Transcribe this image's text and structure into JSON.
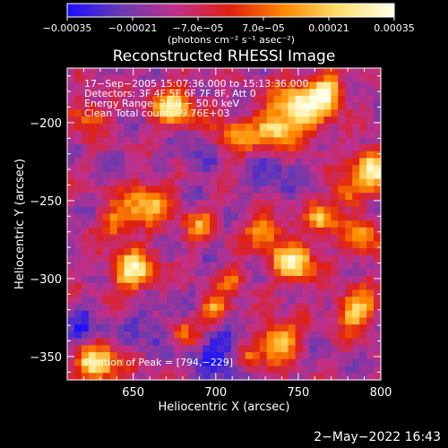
{
  "chart_data": {
    "type": "heatmap",
    "title": "Reconstructed RHESSI Image",
    "xlabel": "Heliocentric X (arcsec)",
    "ylabel": "Heliocentric Y (arcsec)",
    "xlim": [
      610,
      800
    ],
    "ylim": [
      -365,
      -165
    ],
    "x_ticks": [
      650,
      700,
      750,
      800
    ],
    "y_ticks": [
      -200,
      -250,
      -300,
      -350
    ],
    "colorbar": {
      "range": [
        -0.00035,
        0.00035
      ],
      "tick_values": [
        -0.00035,
        -0.00021,
        -7e-05,
        7e-05,
        0.00021,
        0.00035
      ],
      "tick_labels": [
        "−0.00035",
        "−0.00021",
        "−7.0e−05",
        "7.0e−05",
        "0.00021",
        "0.00035"
      ],
      "unit_label": "(photons cm⁻² s⁻¹ asec⁻²)",
      "colors": [
        "#1a10ff",
        "#6a3ab0",
        "#c0308a",
        "#e02010",
        "#ff8a00",
        "#ffe070",
        "#ffffe8"
      ]
    },
    "annotations": [
      "17−Sep−2005 15:07:36.000 to 15:13:36.000",
      "Detectors: 3F 4F 5F 6F 7F 8F, Att 0",
      "Energy Range: 25.0 − 50.0 keV",
      "Clean     Total counts: 9.76E+03",
      "Position of Peak = [794,−229]"
    ],
    "grid_cols": 44,
    "grid_rows": 45,
    "hotspots": [
      [
        650,
        -295,
        1.0,
        9
      ],
      [
        658,
        -252,
        0.75,
        10
      ],
      [
        640,
        -265,
        0.55,
        8
      ],
      [
        628,
        -355,
        1.0,
        9
      ],
      [
        675,
        -190,
        0.9,
        9
      ],
      [
        710,
        -210,
        0.6,
        9
      ],
      [
        735,
        -205,
        0.8,
        8
      ],
      [
        752,
        -190,
        1.0,
        12
      ],
      [
        768,
        -180,
        0.8,
        7
      ],
      [
        794,
        -229,
        1.05,
        8
      ],
      [
        780,
        -245,
        0.6,
        7
      ],
      [
        730,
        -270,
        0.7,
        8
      ],
      [
        748,
        -290,
        0.95,
        9
      ],
      [
        765,
        -262,
        0.75,
        7
      ],
      [
        790,
        -275,
        0.65,
        8
      ],
      [
        738,
        -340,
        0.85,
        9
      ],
      [
        785,
        -320,
        0.8,
        9
      ],
      [
        710,
        -300,
        0.5,
        6
      ],
      [
        700,
        -320,
        0.7,
        6
      ],
      [
        690,
        -265,
        0.55,
        7
      ],
      [
        720,
        -352,
        0.6,
        6
      ],
      [
        623,
        -195,
        0.55,
        8
      ],
      [
        680,
        -335,
        0.5,
        6
      ]
    ],
    "coldspots": [
      [
        705,
        -350,
        1.0,
        12
      ],
      [
        620,
        -335,
        0.7,
        9
      ],
      [
        660,
        -330,
        0.6,
        10
      ],
      [
        735,
        -235,
        0.55,
        10
      ],
      [
        690,
        -220,
        0.5,
        10
      ]
    ]
  },
  "footer": {
    "timestamp": "2−May−2022 16:43"
  }
}
